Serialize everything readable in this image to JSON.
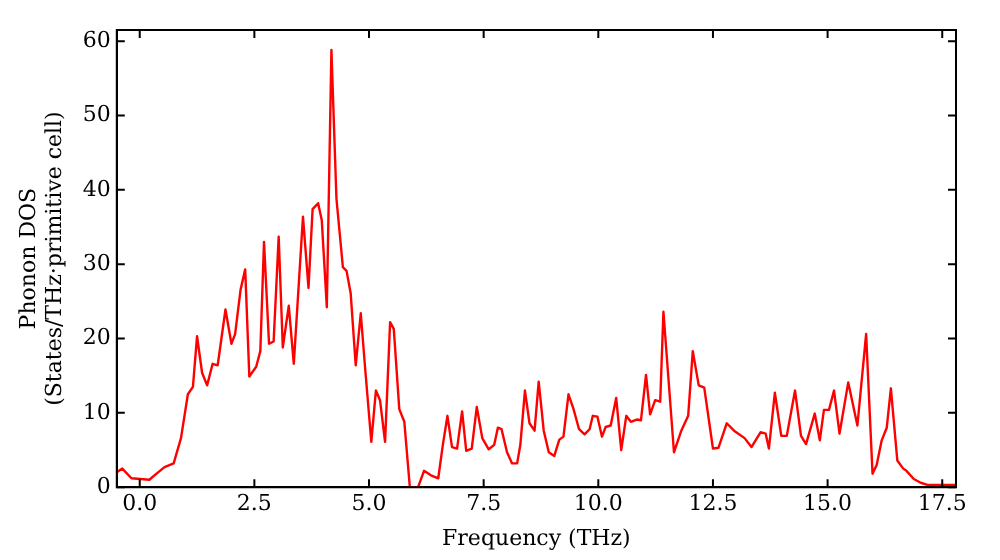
{
  "chart_data": {
    "type": "line",
    "xlabel": "Frequency (THz)",
    "ylabel": "Phonon DOS\n(States/THz·primitive cell)",
    "xlim": [
      -0.5,
      17.8
    ],
    "ylim": [
      0,
      61.5
    ],
    "xticks": [
      {
        "value": 0,
        "label": "0.0"
      },
      {
        "value": 2.5,
        "label": "2.5"
      },
      {
        "value": 5,
        "label": "5.0"
      },
      {
        "value": 7.5,
        "label": "7.5"
      },
      {
        "value": 10,
        "label": "10.0"
      },
      {
        "value": 12.5,
        "label": "12.5"
      },
      {
        "value": 15,
        "label": "15.0"
      },
      {
        "value": 17.5,
        "label": "17.5"
      }
    ],
    "yticks": [
      0,
      10,
      20,
      30,
      40,
      50,
      60
    ],
    "grid": false,
    "legend": false,
    "marker": "none",
    "line_style": "solid",
    "series": [
      {
        "color": "#ff0000",
        "x": [
          -0.5,
          -0.38,
          -0.18,
          0.21,
          0.36,
          0.54,
          0.74,
          0.9,
          1.05,
          1.16,
          1.25,
          1.36,
          1.47,
          1.59,
          1.7,
          1.87,
          2.0,
          2.08,
          2.2,
          2.3,
          2.39,
          2.54,
          2.63,
          2.71,
          2.82,
          2.92,
          3.03,
          3.12,
          3.25,
          3.36,
          3.56,
          3.68,
          3.77,
          3.89,
          3.97,
          4.08,
          4.18,
          4.29,
          4.43,
          4.51,
          4.6,
          4.71,
          4.82,
          4.91,
          5.05,
          5.15,
          5.24,
          5.35,
          5.46,
          5.54,
          5.66,
          5.77,
          5.89,
          6.07,
          6.2,
          6.35,
          6.51,
          6.61,
          6.71,
          6.81,
          6.92,
          7.03,
          7.12,
          7.24,
          7.35,
          7.47,
          7.61,
          7.73,
          7.81,
          7.89,
          8.01,
          8.12,
          8.23,
          8.3,
          8.4,
          8.5,
          8.61,
          8.7,
          8.81,
          8.92,
          9.04,
          9.15,
          9.24,
          9.35,
          9.46,
          9.58,
          9.7,
          9.81,
          9.88,
          9.98,
          10.08,
          10.16,
          10.27,
          10.39,
          10.5,
          10.61,
          10.71,
          10.84,
          10.93,
          11.04,
          11.13,
          11.24,
          11.35,
          11.42,
          11.65,
          11.81,
          11.96,
          12.06,
          12.19,
          12.31,
          12.5,
          12.62,
          12.8,
          12.96,
          13.19,
          13.34,
          13.54,
          13.65,
          13.72,
          13.85,
          13.99,
          14.11,
          14.29,
          14.42,
          14.53,
          14.72,
          14.83,
          14.92,
          15.03,
          15.14,
          15.26,
          15.45,
          15.65,
          15.84,
          15.98,
          16.07,
          16.18,
          16.29,
          16.38,
          16.52,
          16.65,
          16.72,
          16.88,
          17.03,
          17.18,
          17.8
        ],
        "values": [
          2.0,
          2.5,
          1.2,
          1.0,
          1.8,
          2.7,
          3.2,
          6.6,
          12.5,
          13.5,
          20.3,
          15.4,
          13.7,
          16.6,
          16.4,
          23.9,
          19.3,
          20.6,
          26.6,
          29.3,
          14.9,
          16.2,
          18.3,
          33,
          19.3,
          19.6,
          33.7,
          18.8,
          24.4,
          16.6,
          36.4,
          26.8,
          37.4,
          38.2,
          35.9,
          24.2,
          58.8,
          38.8,
          29.6,
          29.1,
          26.1,
          16.4,
          23.4,
          16.4,
          6.1,
          13,
          11.7,
          6.1,
          22.2,
          21.3,
          10.5,
          8.8,
          0,
          0,
          2.2,
          1.6,
          1.2,
          5.7,
          9.6,
          5.4,
          5.2,
          10.2,
          4.9,
          5.2,
          10.8,
          6.6,
          5.1,
          5.7,
          8,
          7.8,
          4.7,
          3.2,
          3.2,
          5.7,
          13,
          8.6,
          7.6,
          14.2,
          7.6,
          4.7,
          4.2,
          6.4,
          6.8,
          12.5,
          10.5,
          7.8,
          7.1,
          7.8,
          9.6,
          9.5,
          6.8,
          8.1,
          8.3,
          12,
          5,
          9.6,
          8.8,
          9.1,
          9,
          15.1,
          9.8,
          11.7,
          11.5,
          23.6,
          4.7,
          7.6,
          9.6,
          18.3,
          13.7,
          13.4,
          5.2,
          5.3,
          8.6,
          7.6,
          6.6,
          5.4,
          7.4,
          7.2,
          5.2,
          12.7,
          6.9,
          6.9,
          13,
          6.9,
          5.8,
          9.9,
          6.3,
          10.4,
          10.4,
          13,
          7.2,
          14.1,
          8.3,
          20.6,
          1.8,
          3,
          6.3,
          8,
          13.3,
          3.6,
          2.5,
          2.2,
          1.1,
          0.6,
          0.3,
          0.3
        ]
      }
    ]
  }
}
